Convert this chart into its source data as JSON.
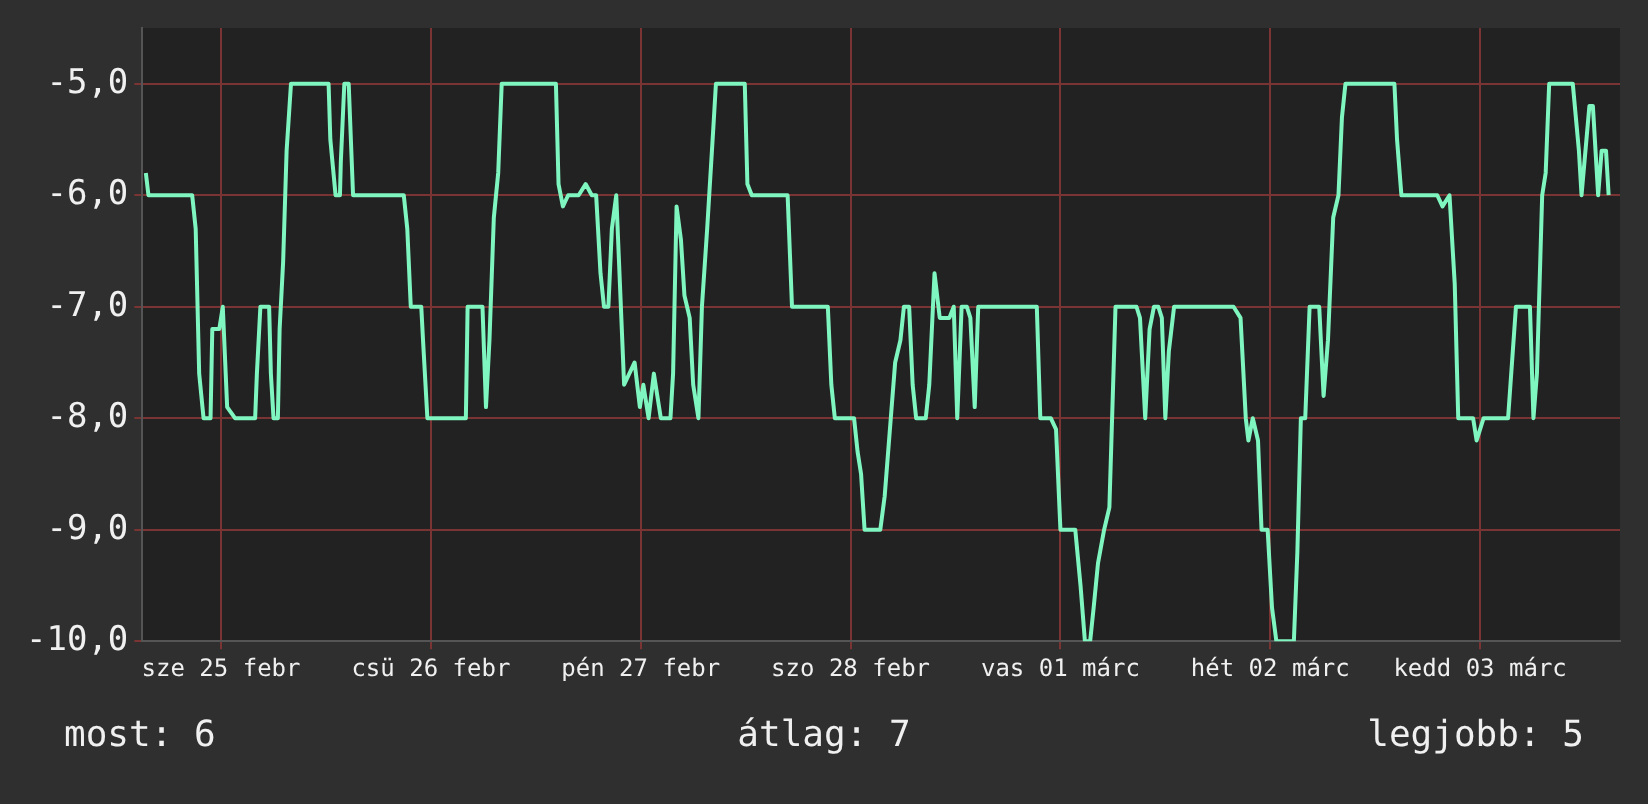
{
  "chart_data": {
    "type": "line",
    "xlim": [
      "--02-24T15:00",
      "--03-03T16:00"
    ],
    "ylim": [
      -10,
      -4.5
    ],
    "xticks": [
      {
        "value": "--02-25",
        "label": "sze 25 febr"
      },
      {
        "value": "--02-26",
        "label": "csü 26 febr"
      },
      {
        "value": "--02-27",
        "label": "pén 27 febr"
      },
      {
        "value": "--02-28",
        "label": "szo 28 febr"
      },
      {
        "value": "--03-01",
        "label": "vas 01 márc"
      },
      {
        "value": "--03-02",
        "label": "hét 02 márc"
      },
      {
        "value": "--03-03",
        "label": "kedd 03 márc"
      }
    ],
    "yticks": [
      {
        "value": -10,
        "label": "-10,0"
      },
      {
        "value": -9,
        "label": "-9,0"
      },
      {
        "value": -8,
        "label": "-8,0"
      },
      {
        "value": -7,
        "label": "-7,0"
      },
      {
        "value": -6,
        "label": "-6,0"
      },
      {
        "value": -5,
        "label": "-5,0"
      }
    ],
    "grid": true,
    "legend": false,
    "marker": "none",
    "line_style": "solid",
    "annotations": [
      "most: 6",
      "átlag: 7",
      "legjobb: 5"
    ],
    "series": [
      {
        "color": "#7ff5bf",
        "x": [
          "--02-24T15:24",
          "--02-24T15:42",
          "--02-24T20:42",
          "--02-24T21:06",
          "--02-24T21:30",
          "--02-24T22:00",
          "--02-24T22:48",
          "--02-24T23:00",
          "--02-24T23:48",
          "--02-25T00:12",
          "--02-25T00:42",
          "--02-25T01:36",
          "--02-25T03:54",
          "--02-25T04:06",
          "--02-25T04:30",
          "--02-25T05:30",
          "--02-25T05:42",
          "--02-25T06:00",
          "--02-25T06:30",
          "--02-25T06:42",
          "--02-25T07:06",
          "--02-25T07:30",
          "--02-25T08:00",
          "--02-25T12:18",
          "--02-25T12:30",
          "--02-25T13:06",
          "--02-25T13:36",
          "--02-25T13:42",
          "--02-25T14:06",
          "--02-25T14:36",
          "--02-25T15:06",
          "--02-25T20:54",
          "--02-25T21:18",
          "--02-25T21:42",
          "--02-25T22:54",
          "--02-25T23:06",
          "--02-25T23:36",
          "--02-26T04:00",
          "--02-26T04:12",
          "--02-26T05:54",
          "--02-26T06:18",
          "--02-26T06:42",
          "--02-26T07:12",
          "--02-26T07:42",
          "--02-26T08:06",
          "--02-26T14:18",
          "--02-26T14:36",
          "--02-26T15:06",
          "--02-26T15:42",
          "--02-26T16:54",
          "--02-26T17:42",
          "--02-26T18:24",
          "--02-26T18:54",
          "--02-26T19:24",
          "--02-26T19:48",
          "--02-26T20:18",
          "--02-26T20:42",
          "--02-26T21:12",
          "--02-26T22:06",
          "--02-26T23:18",
          "--02-26T23:54",
          "--02-27T00:18",
          "--02-27T00:54",
          "--02-27T01:30",
          "--02-27T02:18",
          "--02-27T03:24",
          "--02-27T03:42",
          "--02-27T04:06",
          "--02-27T04:36",
          "--02-27T05:00",
          "--02-27T05:36",
          "--02-27T06:00",
          "--02-27T06:36",
          "--02-27T07:00",
          "--02-27T07:36",
          "--02-27T08:18",
          "--02-27T08:36",
          "--02-27T11:54",
          "--02-27T12:12",
          "--02-27T12:42",
          "--02-27T16:48",
          "--02-27T17:18",
          "--02-27T21:24",
          "--02-27T21:48",
          "--02-27T22:12",
          "--02-28T00:24",
          "--02-28T00:48",
          "--02-28T01:12",
          "--02-28T01:36",
          "--02-28T03:24",
          "--02-28T03:54",
          "--02-28T04:36",
          "--02-28T05:06",
          "--02-28T05:42",
          "--02-28T06:06",
          "--02-28T06:42",
          "--02-28T07:06",
          "--02-28T07:30",
          "--02-28T08:36",
          "--02-28T09:00",
          "--02-28T09:36",
          "--02-28T10:12",
          "--02-28T11:18",
          "--02-28T11:48",
          "--02-28T12:12",
          "--02-28T12:42",
          "--02-28T13:18",
          "--02-28T13:42",
          "--02-28T14:12",
          "--02-28T14:36",
          "--02-28T21:18",
          "--02-28T21:42",
          "--02-28T22:54",
          "--02-28T23:30",
          "--03-01T00:00",
          "--03-01T01:42",
          "--03-01T02:18",
          "--03-01T02:48",
          "--03-01T03:24",
          "--03-01T03:48",
          "--03-01T04:18",
          "--03-01T05:00",
          "--03-01T05:36",
          "--03-01T06:18",
          "--03-01T08:42",
          "--03-01T09:06",
          "--03-01T09:42",
          "--03-01T10:12",
          "--03-01T10:42",
          "--03-01T11:12",
          "--03-01T11:36",
          "--03-01T12:00",
          "--03-01T12:24",
          "--03-01T13:00",
          "--03-01T19:48",
          "--03-01T20:36",
          "--03-01T21:12",
          "--03-01T21:30",
          "--03-01T22:00",
          "--03-01T22:36",
          "--03-01T23:00",
          "--03-01T23:42",
          "--03-02T00:12",
          "--03-02T00:42",
          "--03-02T02:42",
          "--03-02T03:06",
          "--03-02T03:30",
          "--03-02T04:00",
          "--03-02T04:30",
          "--03-02T05:36",
          "--03-02T06:06",
          "--03-02T06:36",
          "--03-02T07:12",
          "--03-02T07:48",
          "--03-02T08:12",
          "--03-02T08:36",
          "--03-02T14:12",
          "--03-02T14:30",
          "--03-02T15:00",
          "--03-02T19:06",
          "--03-02T19:42",
          "--03-02T20:30",
          "--03-02T21:06",
          "--03-02T21:30",
          "--03-02T23:12",
          "--03-02T23:36",
          "--03-03T00:24",
          "--03-03T03:12",
          "--03-03T04:06",
          "--03-03T05:42",
          "--03-03T06:06",
          "--03-03T06:30",
          "--03-03T07:06",
          "--03-03T07:30",
          "--03-03T07:54",
          "--03-03T10:36",
          "--03-03T11:18",
          "--03-03T11:36",
          "--03-03T12:30",
          "--03-03T12:54",
          "--03-03T13:30",
          "--03-03T13:54",
          "--03-03T14:24",
          "--03-03T14:42"
        ],
        "values": [
          -5.8,
          -6,
          -6,
          -6.3,
          -7.6,
          -8,
          -8,
          -7.2,
          -7.2,
          -7,
          -7.9,
          -8,
          -8,
          -7.6,
          -7,
          -7,
          -7.6,
          -8,
          -8,
          -7.2,
          -6.6,
          -5.6,
          -5,
          -5,
          -5.5,
          -6,
          -6,
          -5.7,
          -5,
          -5,
          -6,
          -6,
          -6.3,
          -7,
          -7,
          -7.3,
          -8,
          -8,
          -7,
          -7,
          -7.9,
          -7.3,
          -6.2,
          -5.8,
          -5,
          -5,
          -5.9,
          -6.1,
          -6,
          -6,
          -5.9,
          -6,
          -6,
          -6.7,
          -7,
          -7,
          -6.3,
          -6,
          -7.7,
          -7.5,
          -7.9,
          -7.7,
          -8,
          -7.6,
          -8,
          -8,
          -7.6,
          -6.1,
          -6.4,
          -6.9,
          -7.1,
          -7.7,
          -8,
          -7,
          -6.3,
          -5.4,
          -5,
          -5,
          -5.9,
          -6,
          -6,
          -7,
          -7,
          -7.7,
          -8,
          -8,
          -8.3,
          -8.5,
          -9,
          -9,
          -8.7,
          -8,
          -7.5,
          -7.3,
          -7,
          -7,
          -7.7,
          -8,
          -8,
          -7.7,
          -6.7,
          -7.1,
          -7.1,
          -7,
          -8,
          -7,
          -7,
          -7.1,
          -7.9,
          -7,
          -7,
          -8,
          -8,
          -8.1,
          -9,
          -9,
          -9.5,
          -10,
          -10,
          -9.7,
          -9.3,
          -9,
          -8.8,
          -7,
          -7,
          -7.1,
          -8,
          -7.2,
          -7,
          -7,
          -7.1,
          -8,
          -7.4,
          -7,
          -7,
          -7.1,
          -8,
          -8.2,
          -8,
          -8.2,
          -9,
          -9,
          -9.7,
          -10,
          -10,
          -9.2,
          -8,
          -8,
          -7,
          -7,
          -7.8,
          -7.3,
          -6.2,
          -6,
          -5.3,
          -5,
          -5,
          -5.5,
          -6,
          -6,
          -6.1,
          -6,
          -6.8,
          -8,
          -8,
          -8.2,
          -8,
          -8,
          -7,
          -7,
          -8,
          -7.6,
          -6,
          -5.8,
          -5,
          -5,
          -5.6,
          -6,
          -5.2,
          -5.2,
          -6,
          -5.6,
          -5.6,
          -6
        ]
      }
    ]
  }
}
